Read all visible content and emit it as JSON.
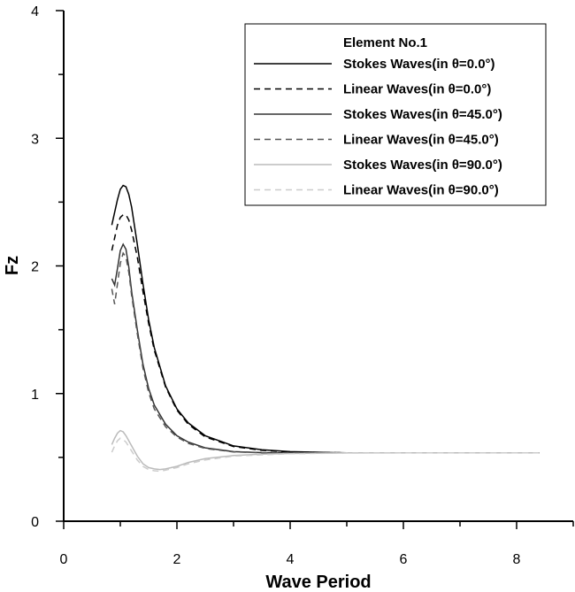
{
  "chart_data": {
    "type": "line",
    "title": "",
    "xlabel": "Wave Period",
    "ylabel": "Fz",
    "xlim": [
      0,
      9
    ],
    "ylim": [
      0,
      4
    ],
    "x_ticks": [
      0,
      2,
      4,
      6,
      8
    ],
    "y_ticks": [
      0,
      1,
      2,
      3,
      4
    ],
    "grid": false,
    "legend": {
      "placement": "top-right",
      "title": "Element No.1"
    },
    "series": [
      {
        "name": "Stokes Waves(in θ=0.0°)",
        "color": "#000000",
        "dash": "solid",
        "x": [
          0.85,
          0.9,
          0.95,
          1.0,
          1.05,
          1.1,
          1.15,
          1.2,
          1.3,
          1.4,
          1.5,
          1.6,
          1.8,
          2.0,
          2.2,
          2.5,
          3.0,
          3.5,
          4.0,
          5.0,
          6.0,
          7.0,
          8.4
        ],
        "y": [
          2.32,
          2.42,
          2.52,
          2.6,
          2.63,
          2.62,
          2.56,
          2.46,
          2.17,
          1.86,
          1.58,
          1.36,
          1.06,
          0.88,
          0.77,
          0.67,
          0.59,
          0.56,
          0.545,
          0.535,
          0.535,
          0.535,
          0.535
        ]
      },
      {
        "name": "Linear Waves(in θ=0.0°)",
        "color": "#000000",
        "dash": "dashed",
        "x": [
          0.85,
          0.9,
          0.95,
          1.0,
          1.05,
          1.1,
          1.15,
          1.2,
          1.3,
          1.4,
          1.5,
          1.6,
          1.8,
          2.0,
          2.2,
          2.5,
          3.0,
          3.5,
          4.0,
          5.0,
          6.0,
          7.0,
          8.4
        ],
        "y": [
          2.12,
          2.22,
          2.32,
          2.38,
          2.4,
          2.4,
          2.36,
          2.28,
          2.07,
          1.8,
          1.55,
          1.34,
          1.05,
          0.87,
          0.76,
          0.66,
          0.585,
          0.555,
          0.543,
          0.535,
          0.535,
          0.535,
          0.535
        ]
      },
      {
        "name": "Stokes Waves(in θ=45.0°)",
        "color": "#333333",
        "dash": "solid",
        "x": [
          0.85,
          0.9,
          0.95,
          1.0,
          1.05,
          1.1,
          1.15,
          1.2,
          1.3,
          1.4,
          1.5,
          1.6,
          1.8,
          2.0,
          2.2,
          2.5,
          3.0,
          3.5,
          4.0,
          5.0,
          6.0,
          7.0,
          8.4
        ],
        "y": [
          1.9,
          1.85,
          1.98,
          2.12,
          2.17,
          2.13,
          1.99,
          1.8,
          1.5,
          1.23,
          1.04,
          0.91,
          0.76,
          0.67,
          0.62,
          0.575,
          0.545,
          0.537,
          0.535,
          0.535,
          0.535,
          0.535,
          0.535
        ]
      },
      {
        "name": "Linear Waves(in θ=45.0°)",
        "color": "#555555",
        "dash": "dashed",
        "x": [
          0.85,
          0.9,
          0.95,
          1.0,
          1.05,
          1.1,
          1.15,
          1.2,
          1.3,
          1.4,
          1.5,
          1.6,
          1.8,
          2.0,
          2.2,
          2.5,
          3.0,
          3.5,
          4.0,
          5.0,
          6.0,
          7.0,
          8.4
        ],
        "y": [
          1.82,
          1.7,
          1.86,
          2.02,
          2.1,
          2.07,
          1.95,
          1.77,
          1.47,
          1.2,
          1.01,
          0.88,
          0.74,
          0.66,
          0.61,
          0.57,
          0.543,
          0.536,
          0.535,
          0.535,
          0.535,
          0.535,
          0.535
        ]
      },
      {
        "name": "Stokes Waves(in θ=90.0°)",
        "color": "#bbbbbb",
        "dash": "solid",
        "x": [
          0.85,
          0.9,
          0.95,
          1.0,
          1.05,
          1.1,
          1.2,
          1.3,
          1.4,
          1.5,
          1.6,
          1.7,
          1.8,
          2.0,
          2.2,
          2.5,
          3.0,
          3.5,
          4.0,
          5.0,
          6.0,
          7.0,
          8.4
        ],
        "y": [
          0.6,
          0.65,
          0.69,
          0.71,
          0.7,
          0.67,
          0.59,
          0.51,
          0.45,
          0.42,
          0.41,
          0.405,
          0.41,
          0.43,
          0.46,
          0.49,
          0.515,
          0.525,
          0.53,
          0.535,
          0.535,
          0.535,
          0.535
        ]
      },
      {
        "name": "Linear Waves(in θ=90.0°)",
        "color": "#cccccc",
        "dash": "dashed",
        "x": [
          0.85,
          0.9,
          0.95,
          1.0,
          1.05,
          1.1,
          1.2,
          1.3,
          1.4,
          1.5,
          1.6,
          1.7,
          1.8,
          2.0,
          2.2,
          2.5,
          3.0,
          3.5,
          4.0,
          5.0,
          6.0,
          7.0,
          8.4
        ],
        "y": [
          0.54,
          0.59,
          0.63,
          0.65,
          0.64,
          0.62,
          0.55,
          0.48,
          0.43,
          0.405,
          0.395,
          0.392,
          0.4,
          0.42,
          0.45,
          0.48,
          0.51,
          0.52,
          0.528,
          0.534,
          0.535,
          0.535,
          0.535
        ]
      }
    ]
  }
}
